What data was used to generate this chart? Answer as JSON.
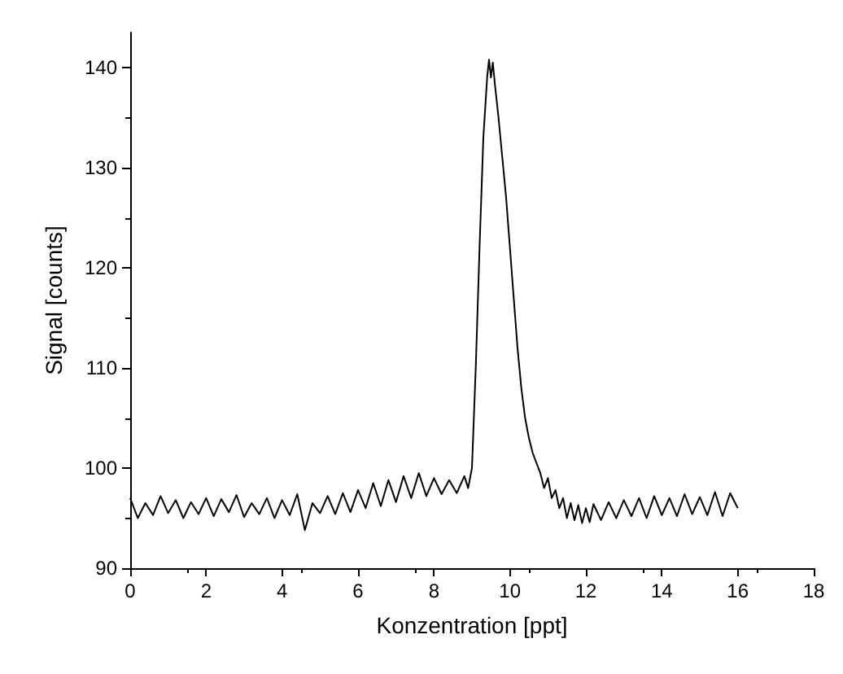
{
  "chart_data": {
    "type": "line",
    "xlabel": "Konzentration [ppt]",
    "ylabel": "Signal [counts]",
    "xlim": [
      0,
      18
    ],
    "xticks": [
      0,
      2,
      4,
      6,
      8,
      10,
      12,
      14,
      16,
      18
    ],
    "ylim": [
      90,
      143.5
    ],
    "yticks": [
      90,
      100,
      110,
      120,
      130,
      140
    ],
    "grid": false,
    "marker": "none",
    "line_style": "solid",
    "x": [
      0,
      0.2,
      0.4,
      0.6,
      0.8,
      1,
      1.2,
      1.4,
      1.6,
      1.8,
      2,
      2.2,
      2.4,
      2.6,
      2.8,
      3,
      3.2,
      3.4,
      3.6,
      3.8,
      4,
      4.2,
      4.4,
      4.6,
      4.8,
      5,
      5.2,
      5.4,
      5.6,
      5.8,
      6,
      6.2,
      6.4,
      6.6,
      6.8,
      7,
      7.2,
      7.4,
      7.6,
      7.8,
      8,
      8.2,
      8.4,
      8.6,
      8.8,
      8.9,
      9,
      9.1,
      9.2,
      9.3,
      9.4,
      9.45,
      9.5,
      9.55,
      9.6,
      9.7,
      9.8,
      9.9,
      10,
      10.1,
      10.2,
      10.3,
      10.4,
      10.5,
      10.6,
      10.7,
      10.8,
      10.9,
      11,
      11.1,
      11.2,
      11.3,
      11.4,
      11.5,
      11.6,
      11.7,
      11.8,
      11.9,
      12,
      12.1,
      12.2,
      12.4,
      12.6,
      12.8,
      13,
      13.2,
      13.4,
      13.6,
      13.8,
      14,
      14.2,
      14.4,
      14.6,
      14.8,
      15,
      15.2,
      15.4,
      15.6,
      15.8,
      16
    ],
    "series": [
      {
        "color": "#000000",
        "values": [
          97,
          95,
          96.5,
          95.3,
          97.2,
          95.5,
          96.8,
          95,
          96.6,
          95.4,
          97,
          95.2,
          96.9,
          95.6,
          97.3,
          95.1,
          96.5,
          95.4,
          97,
          95,
          96.8,
          95.3,
          97.4,
          93.8,
          96.5,
          95.5,
          97.2,
          95.4,
          97.5,
          95.6,
          97.8,
          96,
          98.5,
          96.2,
          98.8,
          96.6,
          99.2,
          97,
          99.5,
          97.2,
          99,
          97.4,
          98.8,
          97.5,
          99.2,
          98,
          100,
          110,
          122,
          133,
          139,
          140.8,
          139,
          140.5,
          138.5,
          135,
          131,
          127,
          122,
          117,
          112,
          108,
          105,
          103,
          101.5,
          100.5,
          99.5,
          98,
          99,
          97,
          97.8,
          96,
          97,
          95,
          96.5,
          94.8,
          96.3,
          94.5,
          96,
          94.6,
          96.4,
          94.8,
          96.6,
          95,
          96.8,
          95.2,
          97,
          95,
          97.2,
          95.3,
          97,
          95.2,
          97.4,
          95.4,
          97.1,
          95.3,
          97.6,
          95.2,
          97.5,
          96
        ]
      }
    ]
  }
}
